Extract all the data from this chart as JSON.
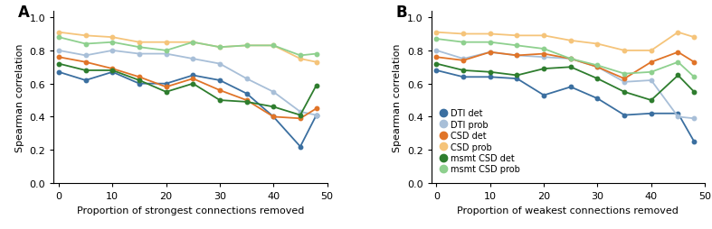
{
  "x": [
    0,
    5,
    10,
    15,
    20,
    25,
    30,
    35,
    40,
    45,
    48
  ],
  "panel_A": {
    "title": "A",
    "xlabel": "Proportion of strongest connections removed",
    "ylabel": "Spearman correlation",
    "DTI_det": [
      0.67,
      0.62,
      0.67,
      0.6,
      0.6,
      0.65,
      0.62,
      0.54,
      0.4,
      0.22,
      0.41
    ],
    "DTI_prob": [
      0.8,
      0.77,
      0.8,
      0.78,
      0.78,
      0.75,
      0.72,
      0.63,
      0.55,
      0.43,
      0.41
    ],
    "CSD_det": [
      0.76,
      0.73,
      0.69,
      0.64,
      0.58,
      0.63,
      0.56,
      0.5,
      0.4,
      0.39,
      0.45
    ],
    "CSD_prob": [
      0.91,
      0.89,
      0.88,
      0.85,
      0.85,
      0.85,
      0.82,
      0.83,
      0.83,
      0.75,
      0.73
    ],
    "msmt_CSD_det": [
      0.72,
      0.68,
      0.68,
      0.62,
      0.55,
      0.6,
      0.5,
      0.49,
      0.46,
      0.41,
      0.59
    ],
    "msmt_CSD_prob": [
      0.88,
      0.84,
      0.85,
      0.82,
      0.8,
      0.85,
      0.82,
      0.83,
      0.83,
      0.77,
      0.78
    ]
  },
  "panel_B": {
    "title": "B",
    "xlabel": "Proportion of weakest connections removed",
    "ylabel": "Spearman correlation",
    "DTI_det": [
      0.68,
      0.64,
      0.64,
      0.63,
      0.53,
      0.58,
      0.51,
      0.41,
      0.42,
      0.42,
      0.25
    ],
    "DTI_prob": [
      0.8,
      0.75,
      0.79,
      0.77,
      0.76,
      0.75,
      0.7,
      0.61,
      0.62,
      0.4,
      0.39
    ],
    "CSD_det": [
      0.76,
      0.74,
      0.79,
      0.77,
      0.78,
      0.75,
      0.7,
      0.63,
      0.73,
      0.79,
      0.73
    ],
    "CSD_prob": [
      0.91,
      0.9,
      0.9,
      0.89,
      0.89,
      0.86,
      0.84,
      0.8,
      0.8,
      0.91,
      0.88
    ],
    "msmt_CSD_det": [
      0.72,
      0.68,
      0.67,
      0.65,
      0.69,
      0.7,
      0.63,
      0.55,
      0.5,
      0.65,
      0.55
    ],
    "msmt_CSD_prob": [
      0.87,
      0.85,
      0.85,
      0.83,
      0.81,
      0.75,
      0.71,
      0.66,
      0.67,
      0.73,
      0.64
    ]
  },
  "colors": {
    "DTI_det": "#3b6fa0",
    "DTI_prob": "#a8bfd8",
    "CSD_det": "#e07428",
    "CSD_prob": "#f5c47a",
    "msmt_CSD_det": "#2e7d2e",
    "msmt_CSD_prob": "#8ed08e"
  },
  "legend_labels": {
    "DTI_det": "DTI det",
    "DTI_prob": "DTI prob",
    "CSD_det": "CSD det",
    "CSD_prob": "CSD prob",
    "msmt_CSD_det": "msmt CSD det",
    "msmt_CSD_prob": "msmt CSD prob"
  },
  "ylim": [
    0.0,
    1.04
  ],
  "yticks": [
    0.0,
    0.2,
    0.4,
    0.6,
    0.8,
    1.0
  ]
}
